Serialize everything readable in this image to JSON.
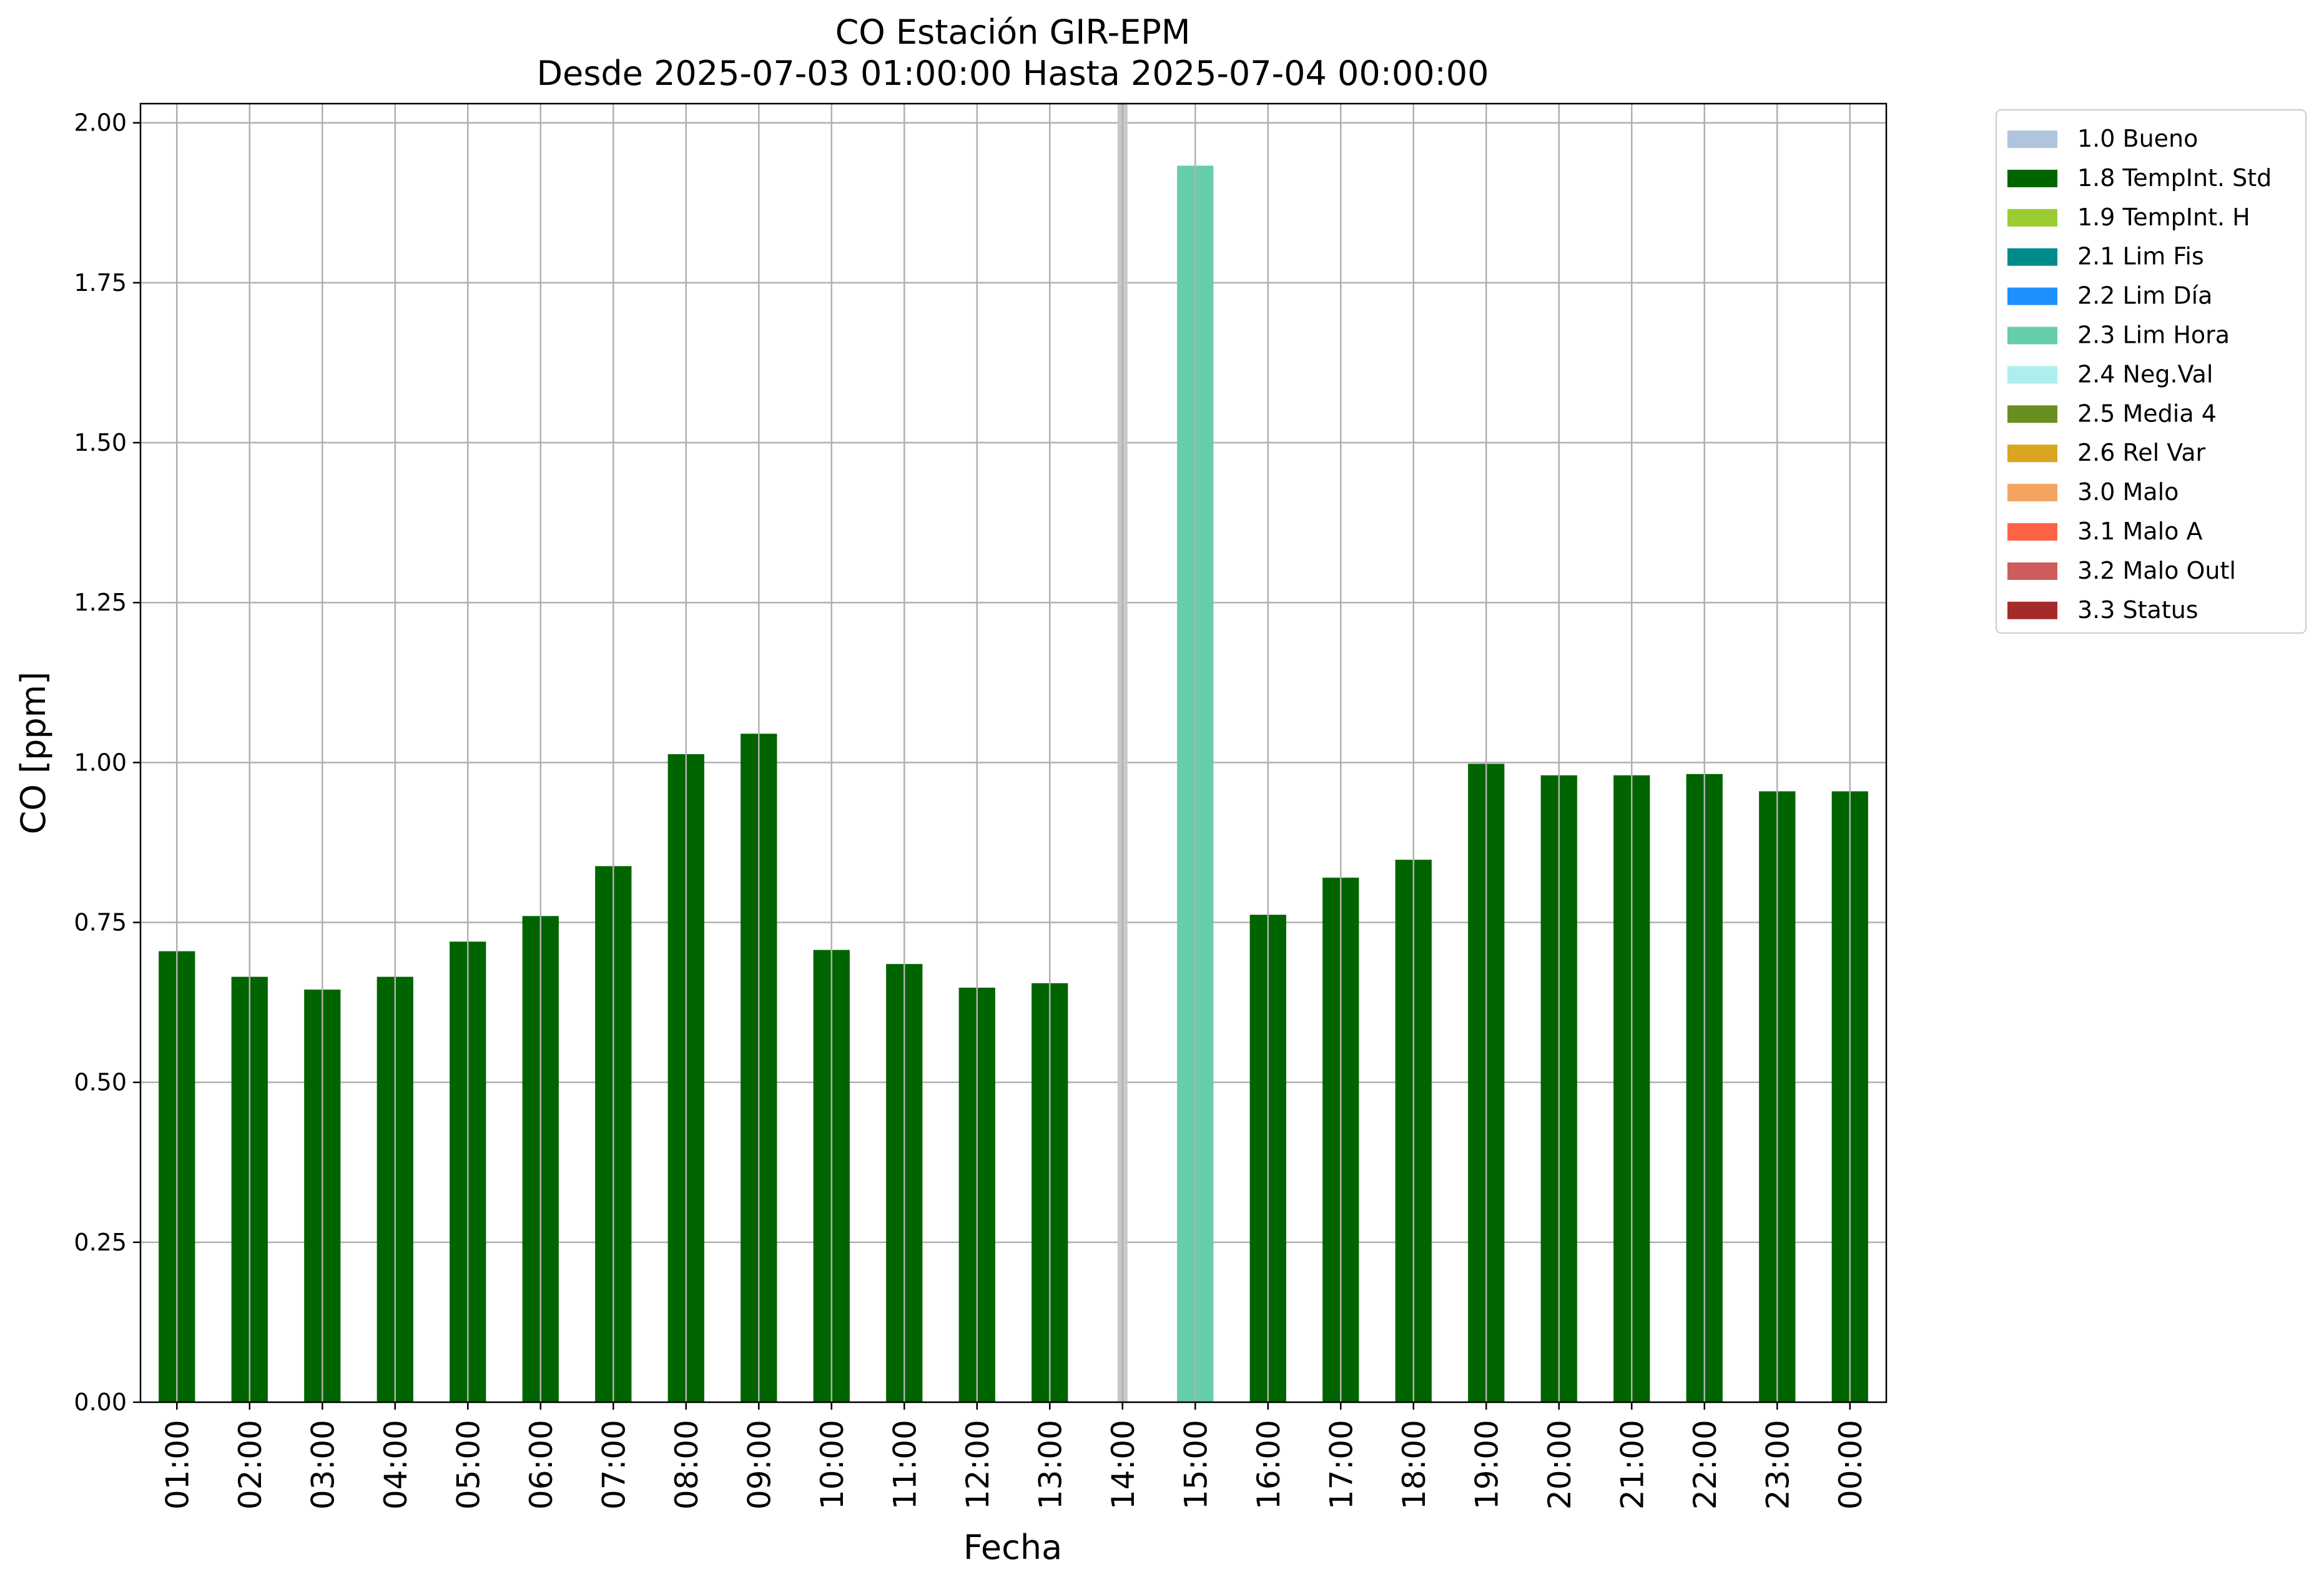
{
  "chart_data": {
    "type": "bar",
    "title": "CO Estación GIR-EPM",
    "subtitle": "Desde 2025-07-03 01:00:00 Hasta 2025-07-04 00:00:00",
    "xlabel": "Fecha",
    "ylabel": "CO [ppm]",
    "ylim": [
      0,
      2.03
    ],
    "yticks": [
      "0.00",
      "0.25",
      "0.50",
      "0.75",
      "1.00",
      "1.25",
      "1.50",
      "1.75",
      "2.00"
    ],
    "grid": true,
    "legend_position": "outside-right-top",
    "categories": [
      "01:00",
      "02:00",
      "03:00",
      "04:00",
      "05:00",
      "06:00",
      "07:00",
      "08:00",
      "09:00",
      "10:00",
      "11:00",
      "12:00",
      "13:00",
      "14:00",
      "15:00",
      "16:00",
      "17:00",
      "18:00",
      "19:00",
      "20:00",
      "21:00",
      "22:00",
      "23:00",
      "00:00"
    ],
    "values": [
      0.705,
      0.665,
      0.645,
      0.665,
      0.72,
      0.76,
      0.838,
      1.013,
      1.045,
      0.707,
      0.685,
      0.648,
      0.655,
      null,
      1.933,
      0.762,
      0.82,
      0.848,
      0.998,
      0.98,
      0.98,
      0.982,
      0.955,
      0.955
    ],
    "flags": [
      "1.8 TempInt. Std",
      "1.8 TempInt. Std",
      "1.8 TempInt. Std",
      "1.8 TempInt. Std",
      "1.8 TempInt. Std",
      "1.8 TempInt. Std",
      "1.8 TempInt. Std",
      "1.8 TempInt. Std",
      "1.8 TempInt. Std",
      "1.8 TempInt. Std",
      "1.8 TempInt. Std",
      "1.8 TempInt. Std",
      "1.8 TempInt. Std",
      null,
      "2.3 Lim Hora",
      "1.8 TempInt. Std",
      "1.8 TempInt. Std",
      "1.8 TempInt. Std",
      "1.8 TempInt. Std",
      "1.8 TempInt. Std",
      "1.8 TempInt. Std",
      "1.8 TempInt. Std",
      "1.8 TempInt. Std",
      "1.8 TempInt. Std"
    ],
    "highlighted_category": "14:00",
    "legend": [
      {
        "label": "1.0 Bueno",
        "color": "#b0c4de"
      },
      {
        "label": "1.8 TempInt. Std",
        "color": "#006400"
      },
      {
        "label": "1.9 TempInt. H",
        "color": "#9acd32"
      },
      {
        "label": "2.1 Lim Fis",
        "color": "#008b8b"
      },
      {
        "label": "2.2 Lim Día",
        "color": "#1e90ff"
      },
      {
        "label": "2.3 Lim Hora",
        "color": "#66cdaa"
      },
      {
        "label": "2.4 Neg.Val",
        "color": "#afeeee"
      },
      {
        "label": "2.5 Media 4",
        "color": "#6b8e23"
      },
      {
        "label": "2.6 Rel Var",
        "color": "#daa520"
      },
      {
        "label": "3.0 Malo",
        "color": "#f4a460"
      },
      {
        "label": "3.1 Malo A",
        "color": "#ff6347"
      },
      {
        "label": "3.2 Malo Outl",
        "color": "#cd5c5c"
      },
      {
        "label": "3.3 Status",
        "color": "#a52a2a"
      }
    ]
  }
}
